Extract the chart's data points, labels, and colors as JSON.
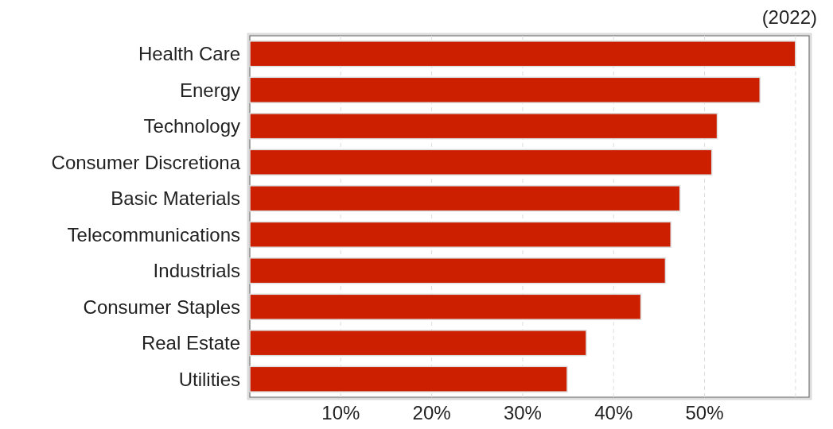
{
  "chart_data": {
    "type": "bar",
    "orientation": "horizontal",
    "categories": [
      "Health Care",
      "Energy",
      "Technology",
      "Consumer Discretiona",
      "Basic Materials",
      "Telecommunications",
      "Industrials",
      "Consumer Staples",
      "Real Estate",
      "Utilities"
    ],
    "values": [
      60.0,
      56.1,
      51.4,
      50.8,
      47.3,
      46.3,
      45.7,
      43.0,
      37.0,
      34.9
    ],
    "color": "#cc1f00",
    "xlim": [
      0,
      61.5
    ],
    "xticks": [
      {
        "value": 10,
        "label": "10%"
      },
      {
        "value": 20,
        "label": "20%"
      },
      {
        "value": 30,
        "label": "30%"
      },
      {
        "value": 40,
        "label": "40%"
      },
      {
        "value": 50,
        "label": "50%"
      },
      {
        "value": 60,
        "label": null
      }
    ],
    "grid": "x",
    "annotations": [
      "(2022)"
    ]
  }
}
